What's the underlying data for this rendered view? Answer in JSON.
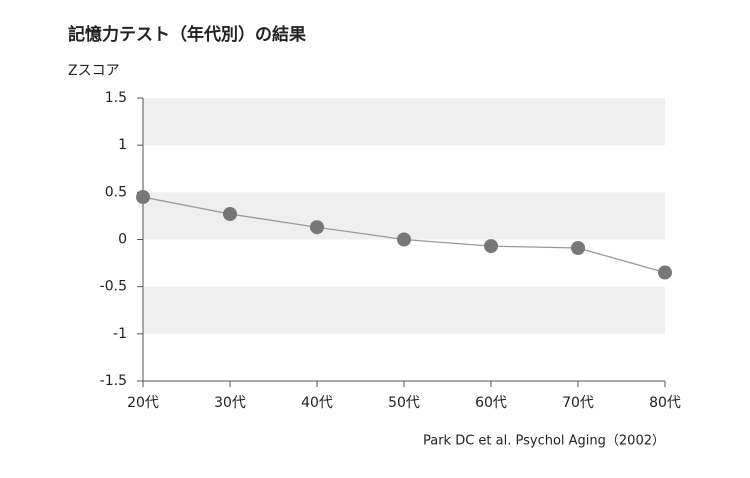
{
  "chart_data": {
    "type": "line",
    "title": "記憶力テスト（年代別）の結果",
    "y_label": "Zスコア",
    "source": "Park DC et al. Psychol Aging（2002）",
    "categories": [
      "20代",
      "30代",
      "40代",
      "50代",
      "60代",
      "70代",
      "80代"
    ],
    "series": [
      {
        "name": "Zスコア",
        "color": "#777777",
        "values": [
          0.45,
          0.27,
          0.13,
          0.0,
          -0.07,
          -0.09,
          -0.35
        ]
      }
    ],
    "line_color": "#999999",
    "ylim": [
      -1.5,
      1.5
    ],
    "yticks": [
      -1.5,
      -1,
      -0.5,
      0,
      0.5,
      1,
      1.5
    ],
    "band_color": "#efefef"
  }
}
